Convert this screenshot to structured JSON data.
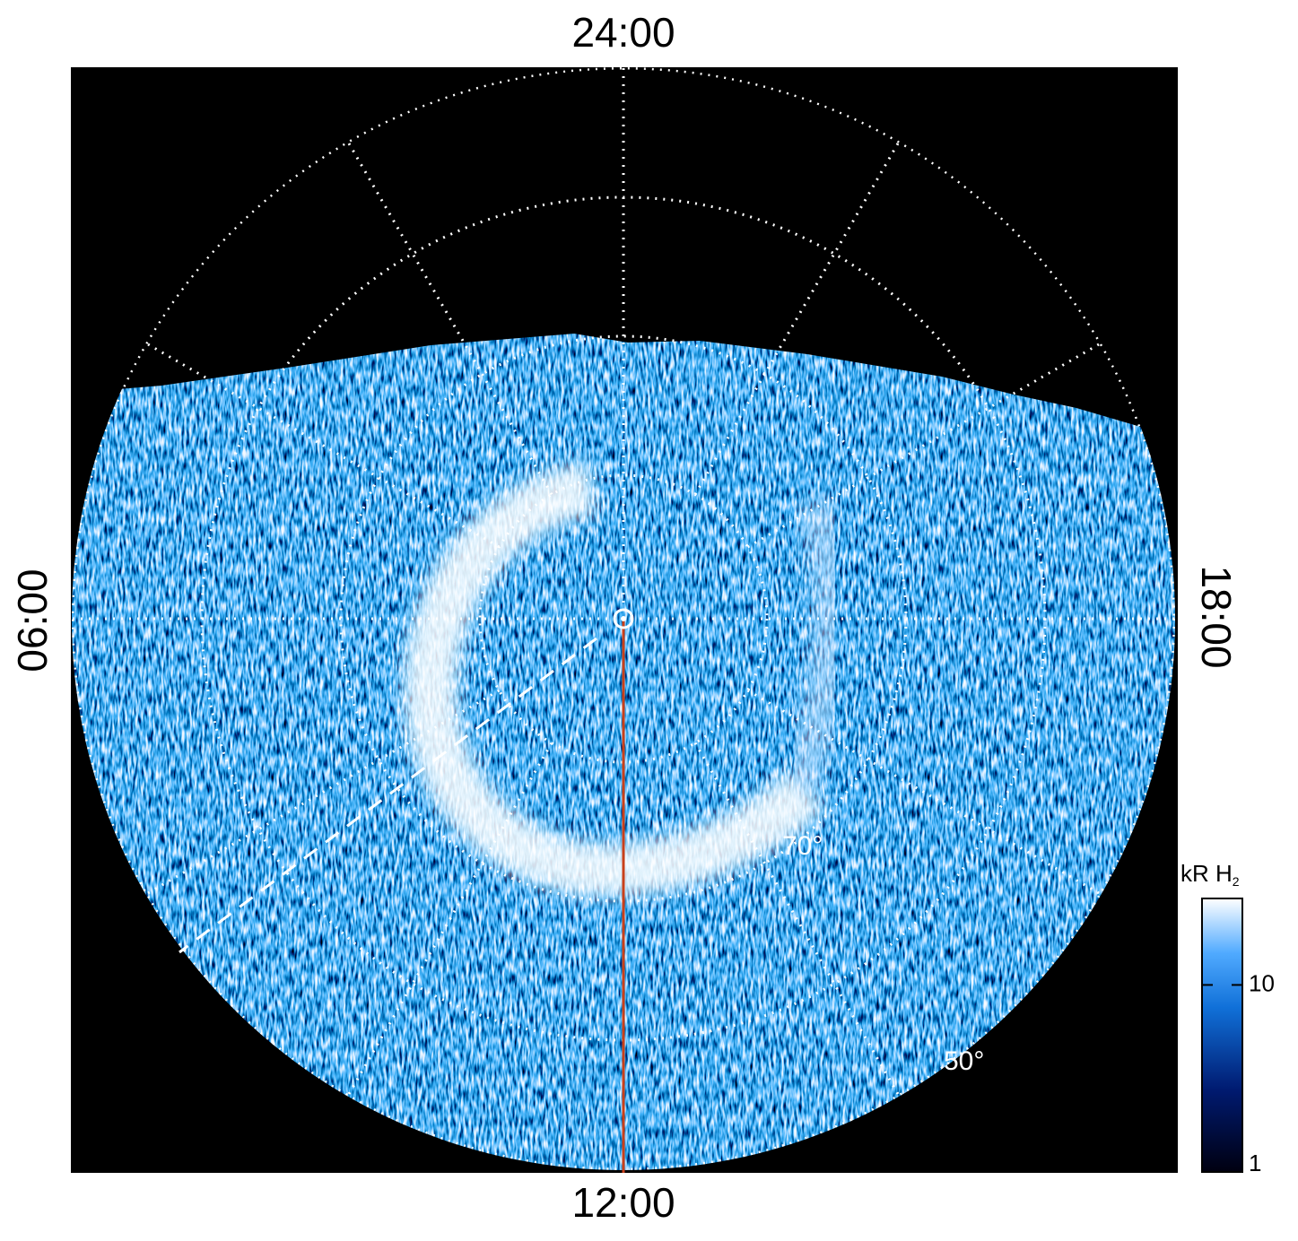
{
  "labels": {
    "top": "24:00",
    "left": "06:00",
    "bottom": "12:00",
    "right": "18:00",
    "lat_inner": "70°",
    "lat_outer": "50°"
  },
  "colorbar": {
    "title": "kR H",
    "title_subscript": "2",
    "log": true,
    "lim": [
      1,
      29
    ],
    "ticks": [
      1,
      10
    ]
  }
}
